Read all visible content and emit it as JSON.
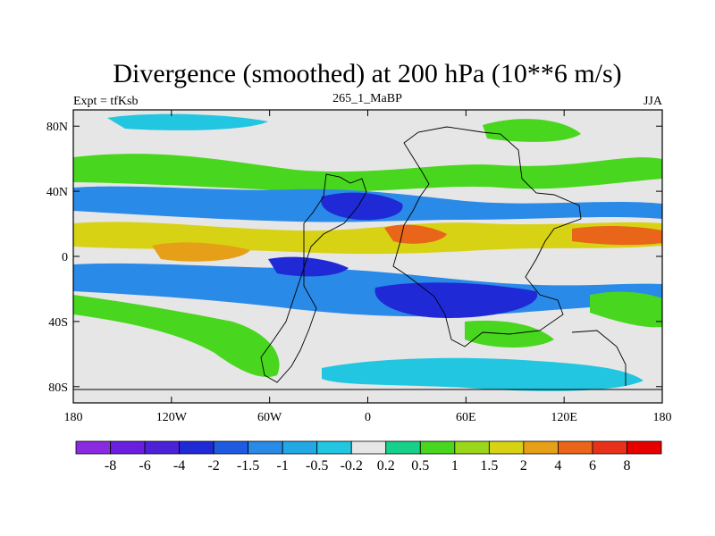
{
  "chart_data": {
    "type": "heatmap",
    "title": "Divergence (smoothed) at 200 hPa (10**6 m/s)",
    "left_label": "Expt = tfKsb",
    "center_label": "265_1_MaBP",
    "right_label": "JJA",
    "x_range": [
      -180,
      180
    ],
    "y_range": [
      -90,
      90
    ],
    "x_ticks": [
      {
        "value": -180,
        "label": "180"
      },
      {
        "value": -120,
        "label": "120W"
      },
      {
        "value": -60,
        "label": "60W"
      },
      {
        "value": 0,
        "label": "0"
      },
      {
        "value": 60,
        "label": "60E"
      },
      {
        "value": 120,
        "label": "120E"
      },
      {
        "value": 180,
        "label": "180"
      }
    ],
    "y_ticks": [
      {
        "value": 80,
        "label": "80N"
      },
      {
        "value": 40,
        "label": "40N"
      },
      {
        "value": 0,
        "label": "0"
      },
      {
        "value": -40,
        "label": "40S"
      },
      {
        "value": -80,
        "label": "80S"
      }
    ],
    "colorbar": {
      "levels": [
        "-8",
        "-6",
        "-4",
        "-2",
        "-1.5",
        "-1",
        "-0.5",
        "-0.2",
        "0.2",
        "0.5",
        "1",
        "1.5",
        "2",
        "4",
        "6",
        "8"
      ],
      "colors": [
        "#8a2be2",
        "#6a1ee0",
        "#4b22d8",
        "#1f2ad6",
        "#1e5be0",
        "#2a8ae8",
        "#23a8e6",
        "#23c6e0",
        "#e6e6e6",
        "#17d08a",
        "#49d61f",
        "#9ad61a",
        "#d8d214",
        "#e6a017",
        "#e8651a",
        "#e8311a",
        "#e60000"
      ]
    },
    "fields": [
      {
        "lon": 15,
        "lat": 12,
        "value": 4
      },
      {
        "lon": 135,
        "lat": 10,
        "value": 4
      },
      {
        "lon": 95,
        "lat": 15,
        "value": 2
      },
      {
        "lon": -130,
        "lat": 8,
        "value": 1.5
      },
      {
        "lon": -45,
        "lat": 8,
        "value": 1
      },
      {
        "lon": -70,
        "lat": 50,
        "value": 0.5
      },
      {
        "lon": 90,
        "lat": 62,
        "value": 0.5
      },
      {
        "lon": -80,
        "lat": 28,
        "value": -2
      },
      {
        "lon": 45,
        "lat": -30,
        "value": -2
      },
      {
        "lon": -95,
        "lat": -10,
        "value": -1.5
      },
      {
        "lon": 110,
        "lat": 40,
        "value": -1
      },
      {
        "lon": 60,
        "lat": -78,
        "value": -0.5
      },
      {
        "lon": -130,
        "lat": -45,
        "value": 0.5
      },
      {
        "lon": -30,
        "lat": -55,
        "value": 0.5
      },
      {
        "lon": 160,
        "lat": -30,
        "value": 0.5
      }
    ]
  }
}
